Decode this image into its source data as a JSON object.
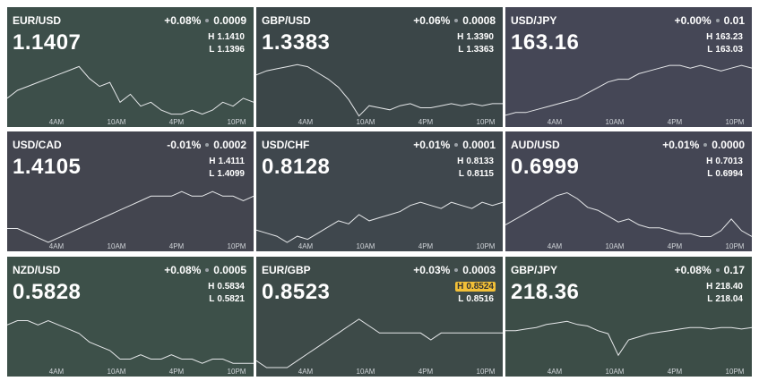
{
  "time_axis": [
    "4AM",
    "10AM",
    "4PM",
    "10PM"
  ],
  "tiles": [
    {
      "pair": "EUR/USD",
      "change": "+0.08%",
      "change_abs": "0.0009",
      "price": "1.1407",
      "color": "#3d4f4a",
      "high": {
        "label": "H",
        "value": "1.1410"
      },
      "low": {
        "label": "L",
        "value": "1.1396"
      },
      "spark": [
        1.1401,
        1.1403,
        1.1404,
        1.1405,
        1.1406,
        1.1407,
        1.1408,
        1.1409,
        1.1406,
        1.1404,
        1.1405,
        1.14,
        1.1402,
        1.1399,
        1.14,
        1.1398,
        1.1397,
        1.1397,
        1.1398,
        1.1397,
        1.1398,
        1.14,
        1.1399,
        1.1401,
        1.14
      ]
    },
    {
      "pair": "GBP/USD",
      "change": "+0.06%",
      "change_abs": "0.0008",
      "price": "1.3383",
      "color": "#3b4648",
      "high": {
        "label": "H",
        "value": "1.3390"
      },
      "low": {
        "label": "L",
        "value": "1.3363"
      },
      "spark": [
        1.3384,
        1.3386,
        1.3387,
        1.3388,
        1.3389,
        1.3388,
        1.3385,
        1.3382,
        1.3378,
        1.3372,
        1.3364,
        1.3369,
        1.3368,
        1.3367,
        1.3369,
        1.337,
        1.3368,
        1.3368,
        1.3369,
        1.337,
        1.3369,
        1.337,
        1.3369,
        1.337,
        1.337
      ]
    },
    {
      "pair": "USD/JPY",
      "change": "+0.00%",
      "change_abs": "0.01",
      "price": "163.16",
      "color": "#454756",
      "high": {
        "label": "H",
        "value": "163.23"
      },
      "low": {
        "label": "L",
        "value": "163.03"
      },
      "spark": [
        163.04,
        163.05,
        163.05,
        163.06,
        163.07,
        163.08,
        163.09,
        163.1,
        163.12,
        163.14,
        163.16,
        163.17,
        163.17,
        163.19,
        163.2,
        163.21,
        163.22,
        163.22,
        163.21,
        163.22,
        163.21,
        163.2,
        163.21,
        163.22,
        163.21
      ]
    },
    {
      "pair": "USD/CAD",
      "change": "-0.01%",
      "change_abs": "0.0002",
      "price": "1.4105",
      "color": "#43454f",
      "high": {
        "label": "H",
        "value": "1.4111"
      },
      "low": {
        "label": "L",
        "value": "1.4099"
      },
      "spark": [
        1.4102,
        1.4102,
        1.4101,
        1.41,
        1.4099,
        1.41,
        1.4101,
        1.4102,
        1.4103,
        1.4104,
        1.4105,
        1.4106,
        1.4107,
        1.4108,
        1.4109,
        1.4109,
        1.4109,
        1.411,
        1.4109,
        1.4109,
        1.411,
        1.4109,
        1.4109,
        1.4108,
        1.4109
      ]
    },
    {
      "pair": "USD/CHF",
      "change": "+0.01%",
      "change_abs": "0.0001",
      "price": "0.8128",
      "color": "#3f474d",
      "high": {
        "label": "H",
        "value": "0.8133"
      },
      "low": {
        "label": "L",
        "value": "0.8115"
      },
      "spark": [
        0.8119,
        0.8118,
        0.8117,
        0.8115,
        0.8117,
        0.8116,
        0.8118,
        0.812,
        0.8122,
        0.8121,
        0.8124,
        0.8122,
        0.8123,
        0.8124,
        0.8125,
        0.8127,
        0.8128,
        0.8127,
        0.8126,
        0.8128,
        0.8127,
        0.8126,
        0.8128,
        0.8127,
        0.8128
      ]
    },
    {
      "pair": "AUD/USD",
      "change": "+0.01%",
      "change_abs": "0.0000",
      "price": "0.6999",
      "color": "#444654",
      "high": {
        "label": "H",
        "value": "0.7013"
      },
      "low": {
        "label": "L",
        "value": "0.6994"
      },
      "spark": [
        0.7,
        0.7002,
        0.7004,
        0.7006,
        0.7008,
        0.701,
        0.7011,
        0.7009,
        0.7006,
        0.7005,
        0.7003,
        0.7001,
        0.7002,
        0.7,
        0.6999,
        0.6999,
        0.6998,
        0.6997,
        0.6997,
        0.6996,
        0.6996,
        0.6998,
        0.7002,
        0.6998,
        0.6996
      ]
    },
    {
      "pair": "NZD/USD",
      "change": "+0.08%",
      "change_abs": "0.0005",
      "price": "0.5828",
      "color": "#3d5049",
      "high": {
        "label": "H",
        "value": "0.5834"
      },
      "low": {
        "label": "L",
        "value": "0.5821"
      },
      "spark": [
        0.5831,
        0.5832,
        0.5832,
        0.5831,
        0.5832,
        0.5831,
        0.583,
        0.5829,
        0.5827,
        0.5826,
        0.5825,
        0.5823,
        0.5823,
        0.5824,
        0.5823,
        0.5823,
        0.5824,
        0.5823,
        0.5823,
        0.5822,
        0.5823,
        0.5823,
        0.5822,
        0.5822,
        0.5822
      ]
    },
    {
      "pair": "EUR/GBP",
      "change": "+0.03%",
      "change_abs": "0.0003",
      "price": "0.8523",
      "color": "#3d4a48",
      "high": {
        "label": "H",
        "value": "0.8524",
        "highlight": true
      },
      "low": {
        "label": "L",
        "value": "0.8516"
      },
      "spark": [
        0.8517,
        0.8516,
        0.8516,
        0.8516,
        0.8517,
        0.8518,
        0.8519,
        0.852,
        0.8521,
        0.8522,
        0.8523,
        0.8522,
        0.8521,
        0.8521,
        0.8521,
        0.8521,
        0.8521,
        0.852,
        0.8521,
        0.8521,
        0.8521,
        0.8521,
        0.8521,
        0.8521,
        0.8521
      ]
    },
    {
      "pair": "GBP/JPY",
      "change": "+0.08%",
      "change_abs": "0.17",
      "price": "218.36",
      "color": "#3c4d47",
      "high": {
        "label": "H",
        "value": "218.40"
      },
      "low": {
        "label": "L",
        "value": "218.04"
      },
      "spark": [
        218.28,
        218.28,
        218.29,
        218.3,
        218.32,
        218.33,
        218.34,
        218.32,
        218.31,
        218.28,
        218.26,
        218.12,
        218.22,
        218.24,
        218.26,
        218.27,
        218.28,
        218.29,
        218.3,
        218.3,
        218.29,
        218.3,
        218.3,
        218.29,
        218.3
      ]
    }
  ]
}
